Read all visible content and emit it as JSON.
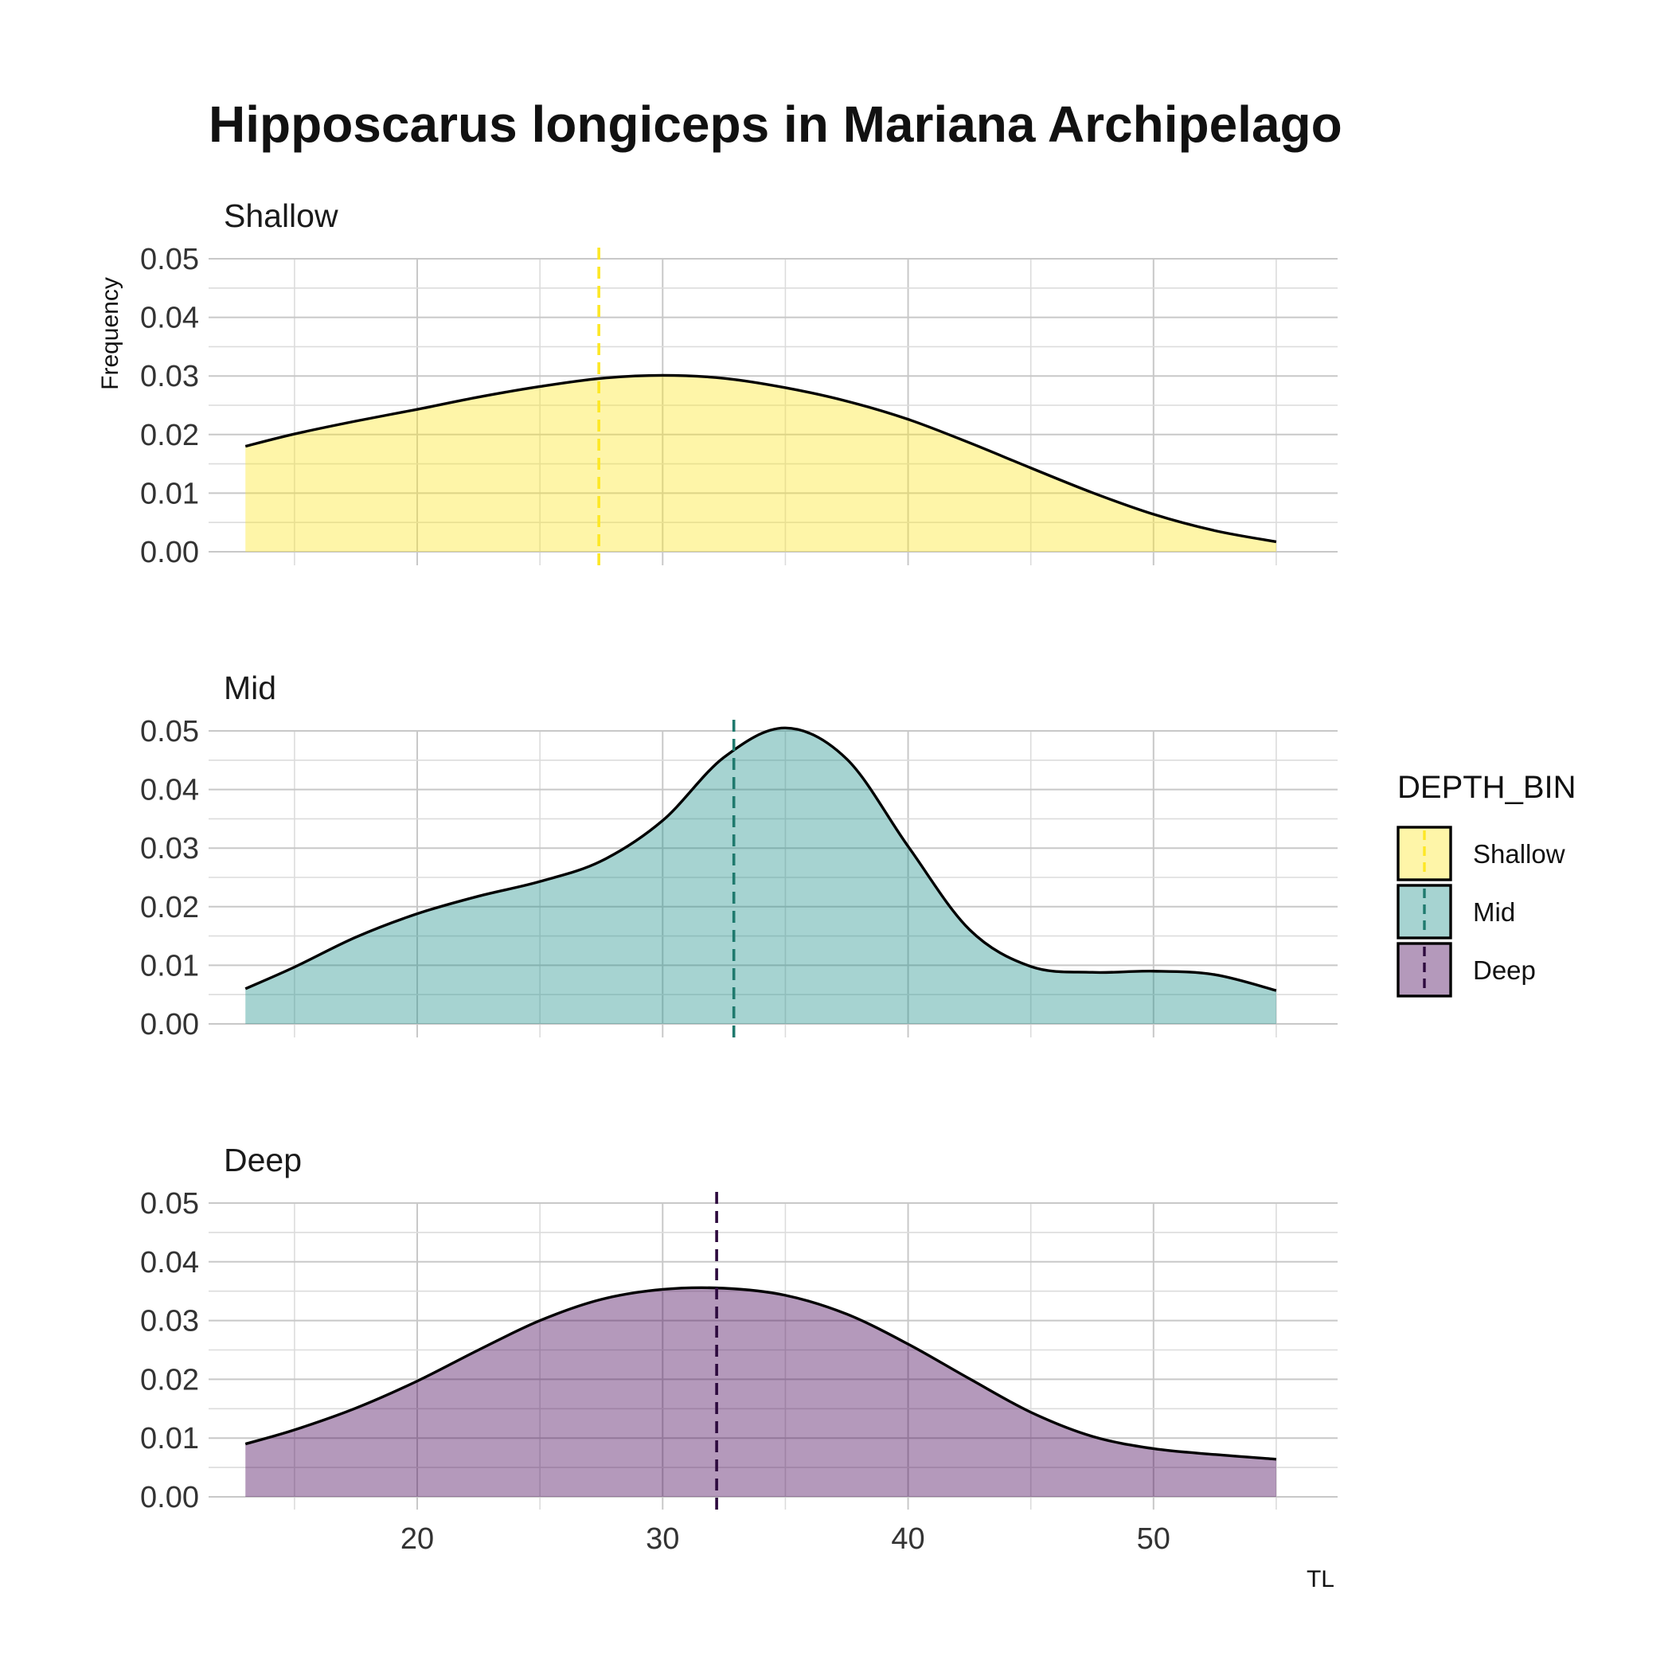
{
  "chart_data": {
    "type": "area",
    "title": "Hipposcarus longiceps in Mariana Archipelago",
    "xlabel": "TL",
    "ylabel": "Frequency",
    "xlim": [
      11.5,
      57.5
    ],
    "ylim": [
      0,
      0.05
    ],
    "x_ticks": [
      "20",
      "30",
      "40",
      "50"
    ],
    "y_ticks": [
      "0.00",
      "0.01",
      "0.02",
      "0.03",
      "0.04",
      "0.05"
    ],
    "grid": true,
    "legend": {
      "title": "DEPTH_BIN",
      "position": "right"
    },
    "panels": [
      {
        "name": "Shallow",
        "color": "#FDE725",
        "line_color": "#FDE725",
        "mean": 27.4,
        "x": [
          13,
          15,
          17.5,
          20,
          22.5,
          25,
          27.5,
          30,
          32.5,
          35,
          37.5,
          40,
          42.5,
          45,
          47.5,
          50,
          52.5,
          55
        ],
        "y": [
          0.018,
          0.0201,
          0.0223,
          0.0243,
          0.0264,
          0.0282,
          0.0296,
          0.0301,
          0.0296,
          0.028,
          0.0257,
          0.0226,
          0.0186,
          0.0143,
          0.0101,
          0.0064,
          0.0036,
          0.0017
        ]
      },
      {
        "name": "Mid",
        "color": "#21908C",
        "line_color": "#1F7A6E",
        "mean": 32.9,
        "x": [
          13,
          15,
          17.5,
          20,
          22.5,
          25,
          27.5,
          30,
          32.5,
          35,
          37.5,
          40,
          42.5,
          45,
          47.5,
          50,
          52.5,
          55
        ],
        "y": [
          0.006,
          0.0097,
          0.0148,
          0.0188,
          0.0218,
          0.0243,
          0.0278,
          0.0347,
          0.0455,
          0.0505,
          0.0452,
          0.0303,
          0.0161,
          0.0098,
          0.0088,
          0.009,
          0.0084,
          0.0057
        ]
      },
      {
        "name": "Deep",
        "color": "#440154",
        "line_color": "#2D0A3E",
        "mean": 32.2,
        "x": [
          13,
          15,
          17.5,
          20,
          22.5,
          25,
          27.5,
          30,
          32.5,
          35,
          37.5,
          40,
          42.5,
          45,
          47.5,
          50,
          52.5,
          55
        ],
        "y": [
          0.009,
          0.0114,
          0.0151,
          0.0197,
          0.025,
          0.03,
          0.0336,
          0.0353,
          0.0355,
          0.0343,
          0.0311,
          0.026,
          0.0201,
          0.0144,
          0.0103,
          0.0082,
          0.0072,
          0.0064
        ]
      }
    ]
  }
}
